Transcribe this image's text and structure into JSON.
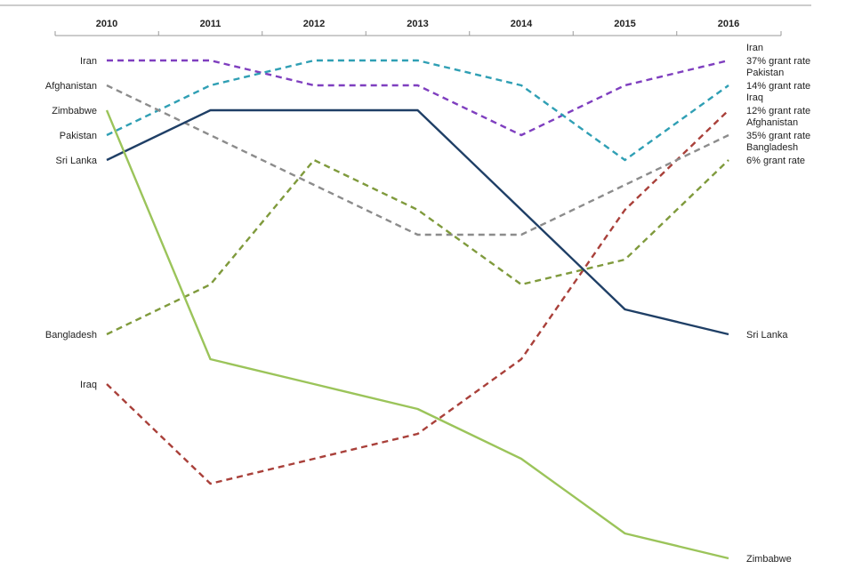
{
  "chart_data": {
    "type": "line",
    "chart_style": "bump chart (rank over time), x axis along top",
    "x": [
      "2010",
      "2011",
      "2012",
      "2013",
      "2014",
      "2015",
      "2016"
    ],
    "y_axis": "rank position (1 = top), not printed",
    "ylim": [
      1,
      21
    ],
    "grid": false,
    "series": [
      {
        "name": "Iran",
        "start_label": "Iran",
        "end_label_lines": [
          "Iran",
          "37% grant rate"
        ],
        "color": "#7f3fbf",
        "dashed": true,
        "values": [
          1,
          1,
          2,
          2,
          4,
          2,
          1
        ]
      },
      {
        "name": "Pakistan",
        "start_label": "Pakistan",
        "end_label_lines": [
          "Pakistan",
          "14% grant rate"
        ],
        "color": "#2f9fb4",
        "dashed": true,
        "values": [
          4,
          2,
          1,
          1,
          2,
          5,
          2
        ]
      },
      {
        "name": "Iraq",
        "start_label": "Iraq",
        "end_label_lines": [
          "Iraq",
          "12% grant rate"
        ],
        "color": "#a9403a",
        "dashed": true,
        "values": [
          14,
          18,
          17,
          16,
          13,
          7,
          3
        ]
      },
      {
        "name": "Afghanistan",
        "start_label": "Afghanistan",
        "end_label_lines": [
          "Afghanistan",
          "35% grant rate"
        ],
        "color": "#8c8c8c",
        "dashed": true,
        "values": [
          2,
          4,
          6,
          8,
          8,
          6,
          4
        ]
      },
      {
        "name": "Bangladesh",
        "start_label": "Bangladesh",
        "end_label_lines": [
          "Bangladesh",
          "6% grant rate"
        ],
        "color": "#7f9a3c",
        "dashed": true,
        "values": [
          12,
          10,
          5,
          7,
          10,
          9,
          5
        ]
      },
      {
        "name": "Sri Lanka",
        "start_label": "Sri Lanka",
        "end_label_lines": [
          "Sri Lanka"
        ],
        "color": "#1f3f66",
        "dashed": false,
        "values": [
          5,
          3,
          3,
          3,
          7,
          11,
          12
        ]
      },
      {
        "name": "Zimbabwe",
        "start_label": "Zimbabwe",
        "end_label_lines": [
          "Zimbabwe"
        ],
        "color": "#9bc45a",
        "dashed": false,
        "values": [
          3,
          13,
          14,
          15,
          17,
          20,
          21
        ]
      }
    ]
  }
}
